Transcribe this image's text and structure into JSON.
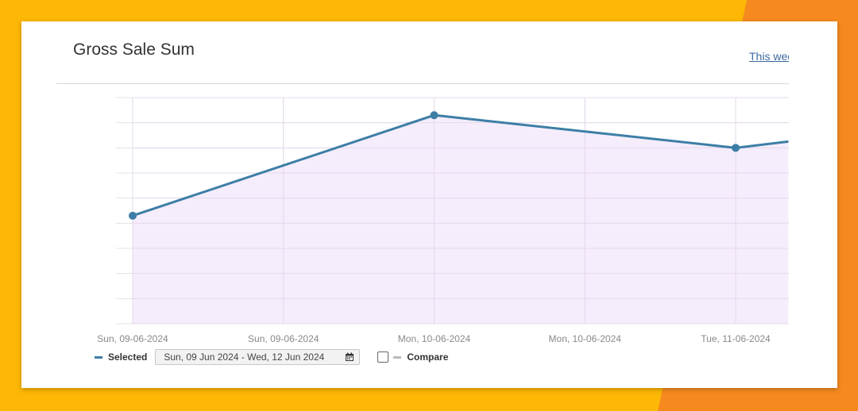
{
  "colors": {
    "background_yellow": "#fdb705",
    "background_orange": "#f68a1f",
    "line": "#3d7ea6",
    "area_fill": "#f3eafa",
    "grid": "#e3e3e3"
  },
  "header": {
    "title": "Gross Sale Sum",
    "range_link": "This wee"
  },
  "legend": {
    "selected_label": "Selected",
    "date_range": "Sun, 09 Jun 2024 - Wed, 12 Jun 2024",
    "compare_label": "Compare",
    "compare_checked": false,
    "calendar_icon": "calendar-icon"
  },
  "chart_data": {
    "type": "area",
    "title": "Gross Sale Sum",
    "xlabel": "",
    "ylabel": "",
    "x_tick_labels": [
      "Sun, 09-06-2024",
      "Sun, 09-06-2024",
      "Mon, 10-06-2024",
      "Mon, 10-06-2024",
      "Tue, 11-06-2024"
    ],
    "y_tick_labels": [],
    "grid": true,
    "ylim": [
      0,
      9
    ],
    "series": [
      {
        "name": "Selected",
        "x": [
          0,
          2,
          4,
          4.35
        ],
        "values": [
          4.3,
          8.3,
          7.0,
          7.25
        ]
      }
    ],
    "legend_position": "bottom-left"
  }
}
